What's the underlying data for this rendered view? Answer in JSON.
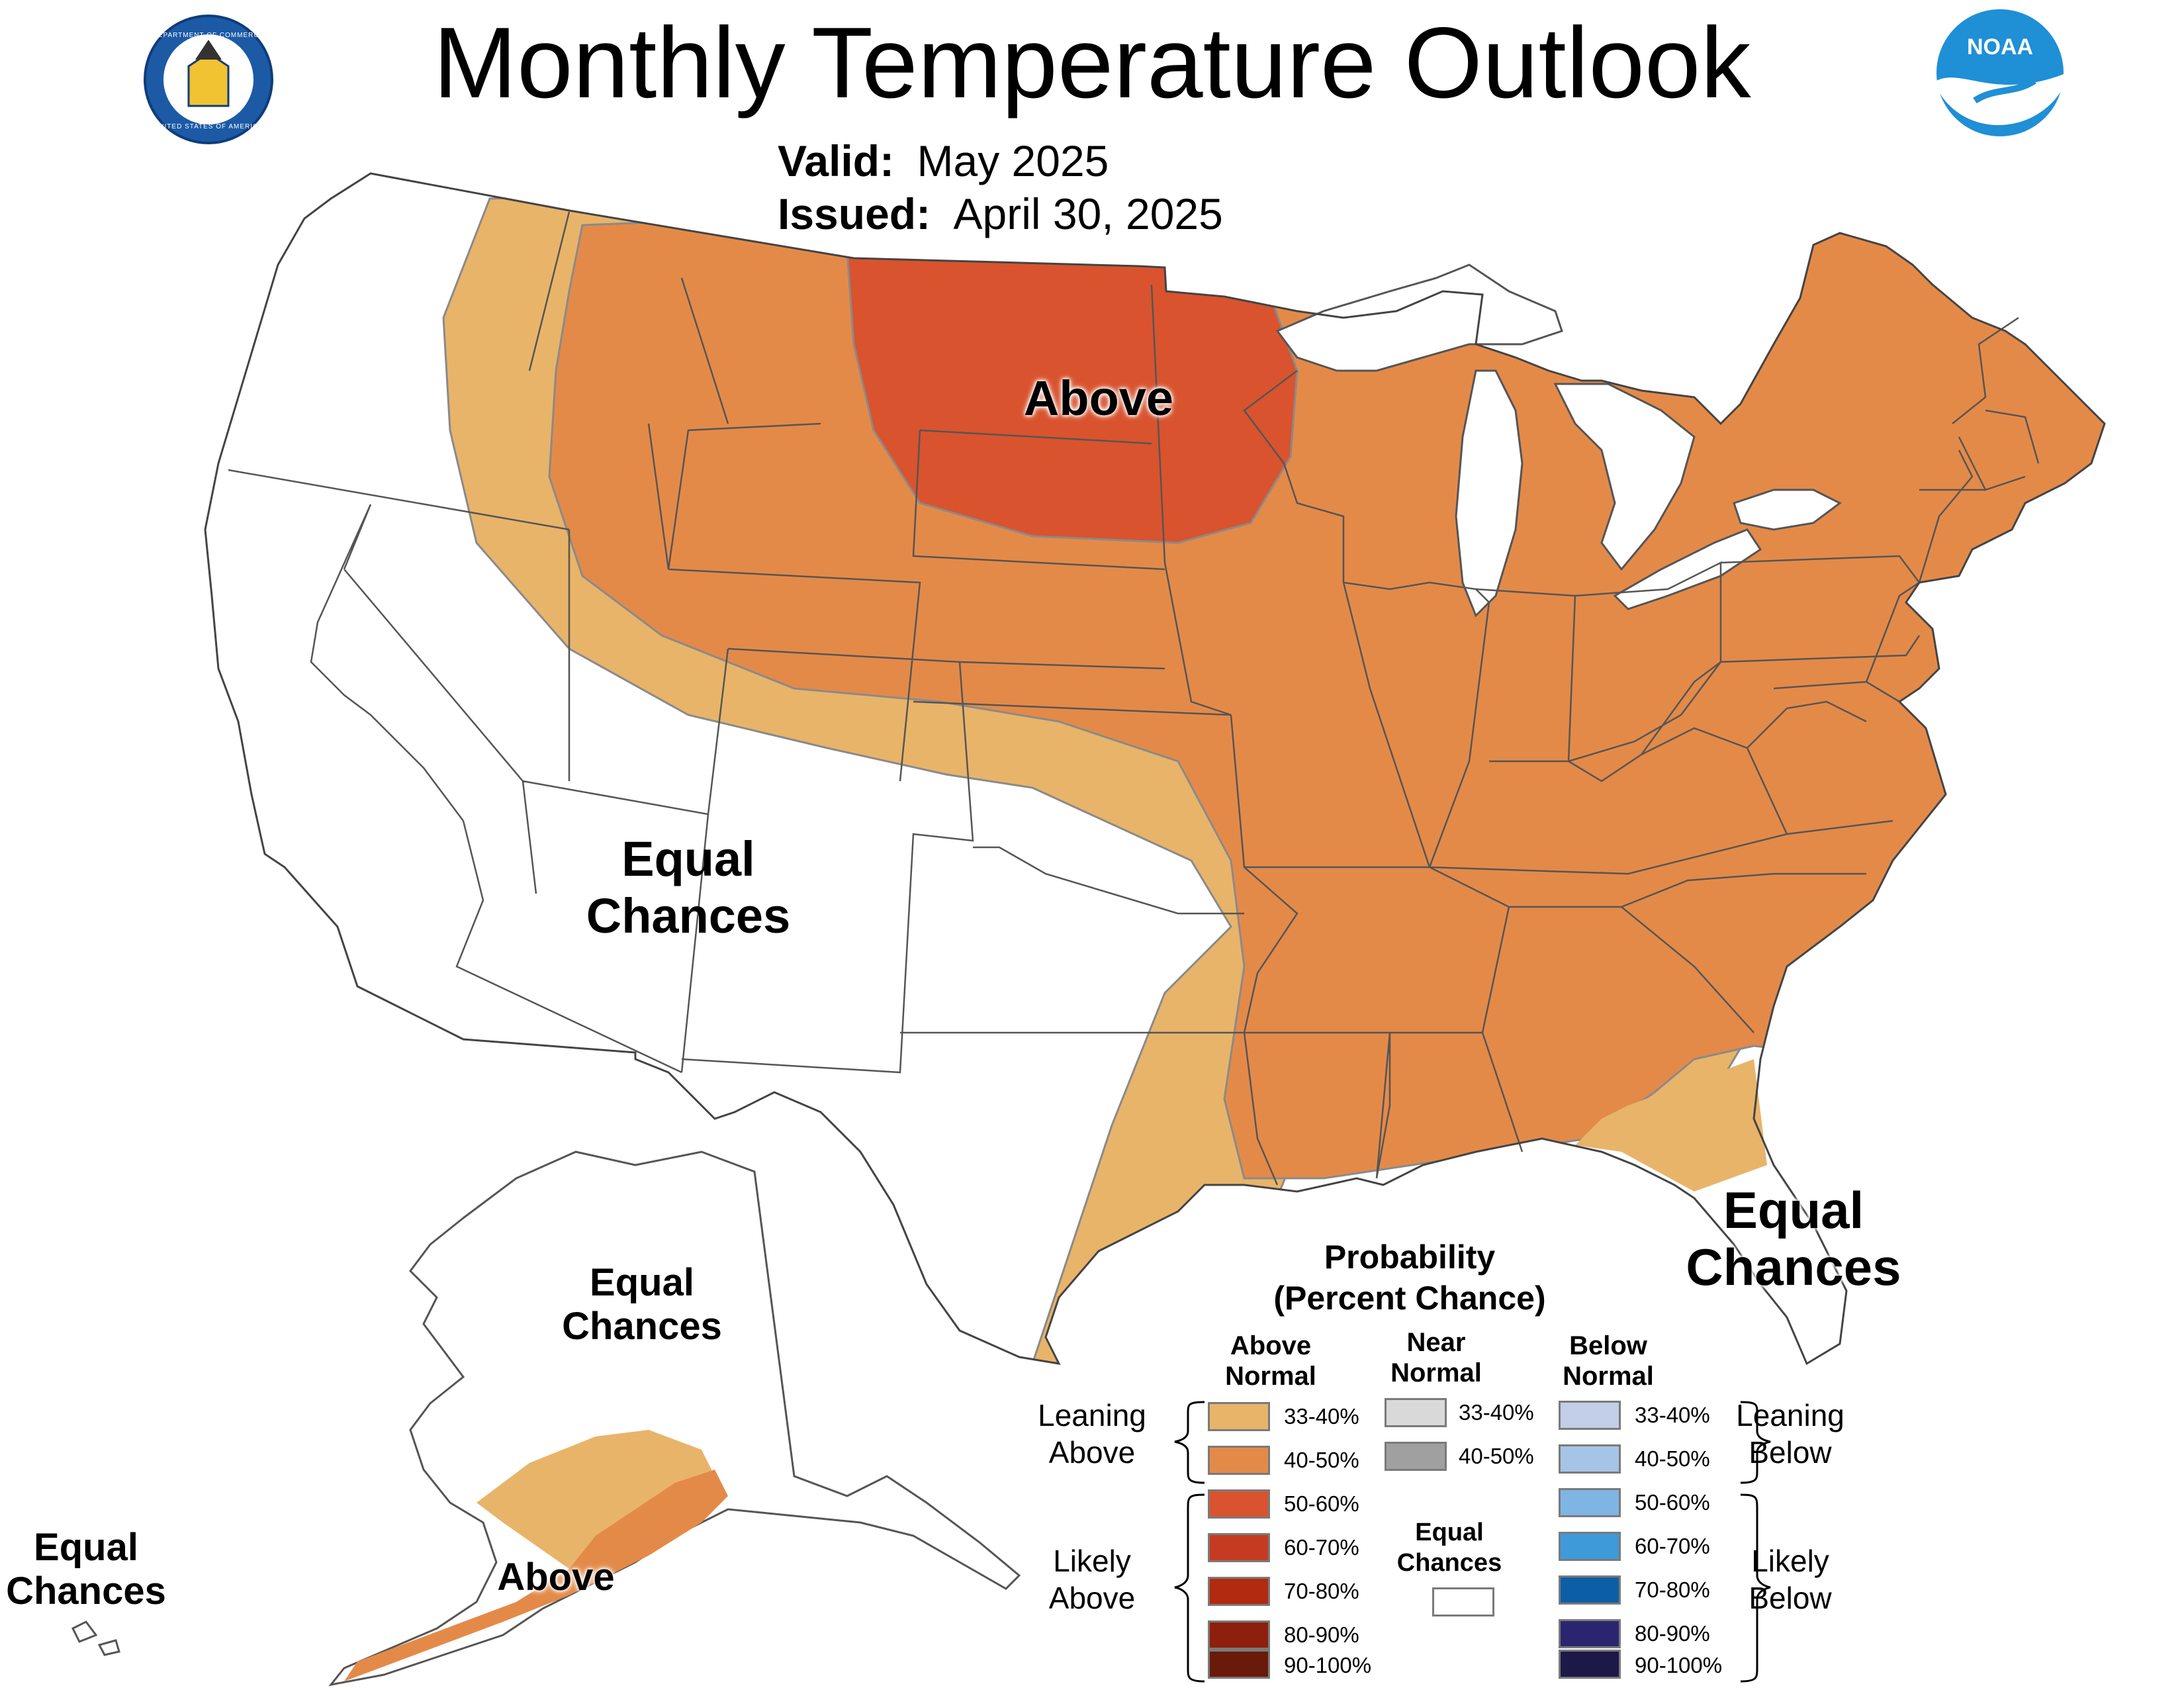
{
  "header": {
    "title": "Monthly Temperature Outlook",
    "valid_label": "Valid:",
    "valid_value": "May 2025",
    "issued_label": "Issued:",
    "issued_value": "April 30, 2025"
  },
  "logos": {
    "commerce_ring_top": "DEPARTMENT OF COMMERCE",
    "commerce_ring_bottom": "UNITED STATES OF AMERICA",
    "noaa_text": "NOAA"
  },
  "colors": {
    "above_33_40": "#e8b46a",
    "above_40_50": "#e48a49",
    "above_50_60": "#d9532e",
    "above_60_70": "#c63a22",
    "above_70_80": "#b22a10",
    "above_80_90": "#8d1f0c",
    "above_90_100": "#6a1a08",
    "near_33_40": "#d9d9d9",
    "near_40_50": "#a0a0a0",
    "below_33_40": "#c2cfe6",
    "below_40_50": "#a6c4e6",
    "below_50_60": "#7eb5e5",
    "below_60_70": "#3e9ad8",
    "below_70_80": "#0d5fa5",
    "below_80_90": "#2b2570",
    "below_90_100": "#1c1848",
    "equal_chances": "#ffffff"
  },
  "map_labels": {
    "conus_above": "Above",
    "conus_west_ec_1": "Equal",
    "conus_west_ec_2": "Chances",
    "florida_ec_1": "Equal",
    "florida_ec_2": "Chances",
    "alaska_ec_1": "Equal",
    "alaska_ec_2": "Chances",
    "alaska_above": "Above",
    "hawaii_ec_1": "Equal",
    "hawaii_ec_2": "Chances"
  },
  "legend": {
    "title_line1": "Probability",
    "title_line2": "(Percent Chance)",
    "col_above_1": "Above",
    "col_above_2": "Normal",
    "col_near_1": "Near",
    "col_near_2": "Normal",
    "col_below_1": "Below",
    "col_below_2": "Normal",
    "leaning_above_1": "Leaning",
    "leaning_above_2": "Above",
    "likely_above_1": "Likely",
    "likely_above_2": "Above",
    "leaning_below_1": "Leaning",
    "leaning_below_2": "Below",
    "likely_below_1": "Likely",
    "likely_below_2": "Below",
    "equal_chances_1": "Equal",
    "equal_chances_2": "Chances",
    "above_ranges": [
      "33-40%",
      "40-50%",
      "50-60%",
      "60-70%",
      "70-80%",
      "80-90%",
      "90-100%"
    ],
    "near_ranges": [
      "33-40%",
      "40-50%"
    ],
    "below_ranges": [
      "33-40%",
      "40-50%",
      "50-60%",
      "60-70%",
      "70-80%",
      "80-90%",
      "90-100%"
    ]
  }
}
